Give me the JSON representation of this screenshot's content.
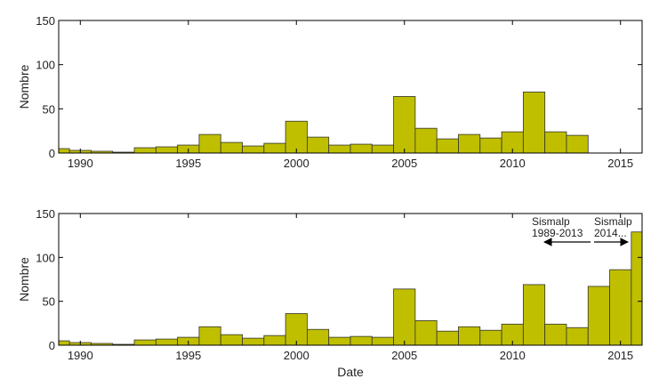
{
  "chart_data": [
    {
      "type": "histogram",
      "ylabel": "Nombre",
      "color": "#bfbf00",
      "bins": [
        1988.5,
        1989.5,
        1990.5,
        1991.5,
        1992.5,
        1993.5,
        1994.5,
        1995.5,
        1996.5,
        1997.5,
        1998.5,
        1999.5,
        2000.5,
        2001.5,
        2002.5,
        2003.5,
        2004.5,
        2005.5,
        2006.5,
        2007.5,
        2008.5,
        2009.5,
        2010.5,
        2011.5,
        2012.5,
        2013.5
      ],
      "values": [
        5,
        3,
        2,
        1,
        6,
        7,
        9,
        21,
        12,
        8,
        11,
        36,
        18,
        9,
        10,
        9,
        64,
        28,
        16,
        21,
        17,
        24,
        69,
        24,
        20
      ],
      "xlim": [
        1989,
        2016
      ],
      "xticks": [
        1990,
        1995,
        2000,
        2005,
        2010,
        2015
      ],
      "ylim": [
        0,
        150
      ],
      "yticks": [
        0,
        50,
        100,
        150
      ]
    },
    {
      "type": "histogram",
      "ylabel": "Nombre",
      "xlabel": "Date",
      "color": "#bfbf00",
      "bins": [
        1988.5,
        1989.5,
        1990.5,
        1991.5,
        1992.5,
        1993.5,
        1994.5,
        1995.5,
        1996.5,
        1997.5,
        1998.5,
        1999.5,
        2000.5,
        2001.5,
        2002.5,
        2003.5,
        2004.5,
        2005.5,
        2006.5,
        2007.5,
        2008.5,
        2009.5,
        2010.5,
        2011.5,
        2012.5,
        2013.5,
        2014.5,
        2015.5,
        2016.5
      ],
      "values": [
        5,
        3,
        2,
        1,
        6,
        7,
        9,
        21,
        12,
        8,
        11,
        36,
        18,
        9,
        10,
        9,
        64,
        28,
        16,
        21,
        17,
        24,
        69,
        24,
        20,
        67,
        86,
        129
      ],
      "xlim": [
        1989,
        2016
      ],
      "xticks": [
        1990,
        1995,
        2000,
        2005,
        2010,
        2015
      ],
      "ylim": [
        0,
        150
      ],
      "yticks": [
        0,
        50,
        100,
        150
      ],
      "annotations": [
        [
          "Sismalp",
          "1989-2013"
        ],
        [
          "Sismalp",
          "2014..."
        ]
      ]
    }
  ]
}
